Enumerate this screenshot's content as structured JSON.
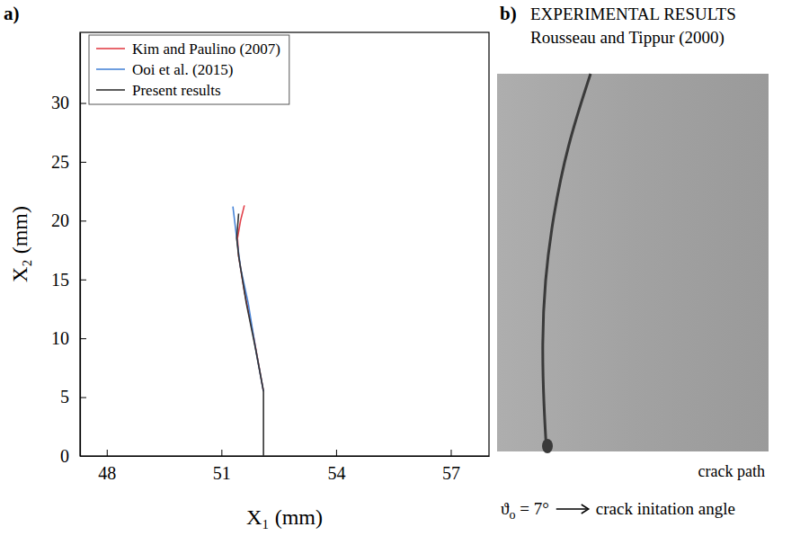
{
  "chart_data": {
    "type": "line",
    "panel_label": "a)",
    "x_label": "X₁ (mm)",
    "y_label": "X₂ (mm)",
    "xlim": [
      47.3,
      58
    ],
    "ylim": [
      0,
      36
    ],
    "xticks": [
      48,
      51,
      54,
      57
    ],
    "yticks": [
      0,
      5,
      10,
      15,
      20,
      25,
      30
    ],
    "grid": false,
    "legend": "upper left",
    "series": [
      {
        "name": "Kim and Paulino (2007)",
        "color": "#e2404a",
        "x": [
          52.1,
          51.85,
          51.6,
          51.45,
          51.42,
          51.5,
          51.6
        ],
        "values": [
          5.5,
          10,
          14,
          17,
          18.5,
          20,
          21.3
        ]
      },
      {
        "name": "Ooi et al. (2015)",
        "color": "#4a86d8",
        "x": [
          52.1,
          51.9,
          51.7,
          51.5,
          51.4,
          51.3
        ],
        "values": [
          5.5,
          9,
          13,
          16,
          18.5,
          21.2
        ]
      },
      {
        "name": "Present results",
        "color": "#333333",
        "x": [
          52.1,
          52.1,
          51.9,
          51.65,
          51.45,
          51.4,
          51.45
        ],
        "values": [
          0,
          5.5,
          9,
          13,
          17,
          18.5,
          20.6
        ]
      }
    ]
  },
  "panel_b": {
    "label": "b)",
    "title": "EXPERIMENTAL RESULTS",
    "subtitle": "Rousseau and Tippur (2000)",
    "caption": "crack path",
    "angle_symbol": "ϑ",
    "angle_subscript": "o",
    "angle_value": " = 7°",
    "angle_note": "crack initation angle"
  }
}
